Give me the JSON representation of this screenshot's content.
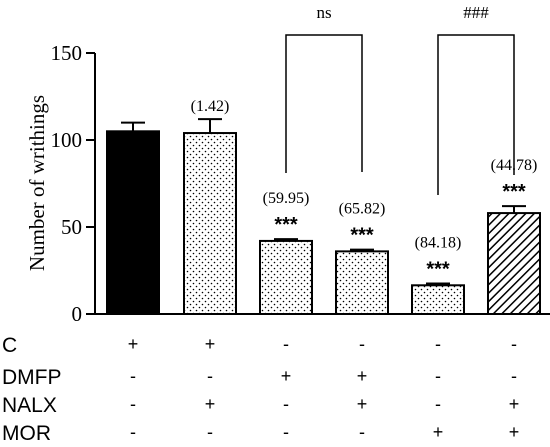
{
  "chart_data": {
    "type": "bar",
    "ylabel": "Number of writhings",
    "ylim": [
      0,
      150
    ],
    "yticks": [
      0,
      50,
      100,
      150
    ],
    "grid": false,
    "bars": [
      {
        "value": 105,
        "error": 5,
        "pattern": "solid-black",
        "pct_label": "",
        "sig": ""
      },
      {
        "value": 104,
        "error": 8,
        "pattern": "dots",
        "pct_label": "(1.42)",
        "sig": ""
      },
      {
        "value": 42,
        "error": 1,
        "pattern": "dots",
        "pct_label": "(59.95)",
        "sig": "***"
      },
      {
        "value": 36,
        "error": 1,
        "pattern": "dots",
        "pct_label": "(65.82)",
        "sig": "***"
      },
      {
        "value": 16.5,
        "error": 1,
        "pattern": "dots",
        "pct_label": "(84.18)",
        "sig": "***"
      },
      {
        "value": 58,
        "error": 4,
        "pattern": "hatch",
        "pct_label": "(44.78)",
        "sig": "***"
      }
    ],
    "brackets": [
      {
        "from": 2,
        "to": 3,
        "label": "ns"
      },
      {
        "from": 4,
        "to": 5,
        "label": "###"
      }
    ],
    "treatments": [
      {
        "name": "C",
        "values": [
          "+",
          "+",
          "-",
          "-",
          "-",
          "-"
        ]
      },
      {
        "name": "DMFP",
        "values": [
          "-",
          "-",
          "+",
          "+",
          "-",
          "-"
        ]
      },
      {
        "name": "NALX",
        "values": [
          "-",
          "+",
          "-",
          "+",
          "-",
          "+"
        ]
      },
      {
        "name": "MOR",
        "values": [
          "-",
          "-",
          "-",
          "-",
          "+",
          "+"
        ]
      }
    ]
  }
}
